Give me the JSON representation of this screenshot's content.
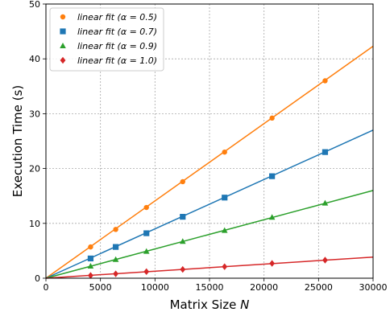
{
  "chart_data": {
    "type": "scatter",
    "title": "",
    "xlabel": "Matrix Size",
    "xlabel_var": "N",
    "ylabel": "Execution Time (s)",
    "xlim": [
      0,
      30000
    ],
    "ylim": [
      0,
      50
    ],
    "xticks": [
      0,
      5000,
      10000,
      15000,
      20000,
      25000,
      30000
    ],
    "yticks": [
      0,
      10,
      20,
      30,
      40,
      50
    ],
    "grid": true,
    "legend_position": "top-left",
    "x": [
      4096,
      6400,
      9216,
      12544,
      16384,
      20736,
      25600
    ],
    "series": [
      {
        "name": "linear fit (α = 0.5)",
        "color": "#ff7f0e",
        "marker": "circle",
        "values": [
          5.7,
          8.9,
          12.9,
          17.6,
          23.0,
          29.2,
          36.0
        ],
        "fit_end": 42.3
      },
      {
        "name": "linear fit (α = 0.7)",
        "color": "#1f77b4",
        "marker": "square",
        "values": [
          3.6,
          5.7,
          8.2,
          11.2,
          14.7,
          18.6,
          23.0
        ],
        "fit_end": 27.0
      },
      {
        "name": "linear fit (α = 0.9)",
        "color": "#2ca02c",
        "marker": "triangle",
        "values": [
          2.2,
          3.4,
          4.9,
          6.7,
          8.7,
          11.1,
          13.7
        ],
        "fit_end": 16.0
      },
      {
        "name": "linear fit (α = 1.0)",
        "color": "#d62728",
        "marker": "diamond",
        "values": [
          0.5,
          0.8,
          1.2,
          1.6,
          2.1,
          2.7,
          3.3
        ],
        "fit_end": 3.85
      }
    ]
  }
}
